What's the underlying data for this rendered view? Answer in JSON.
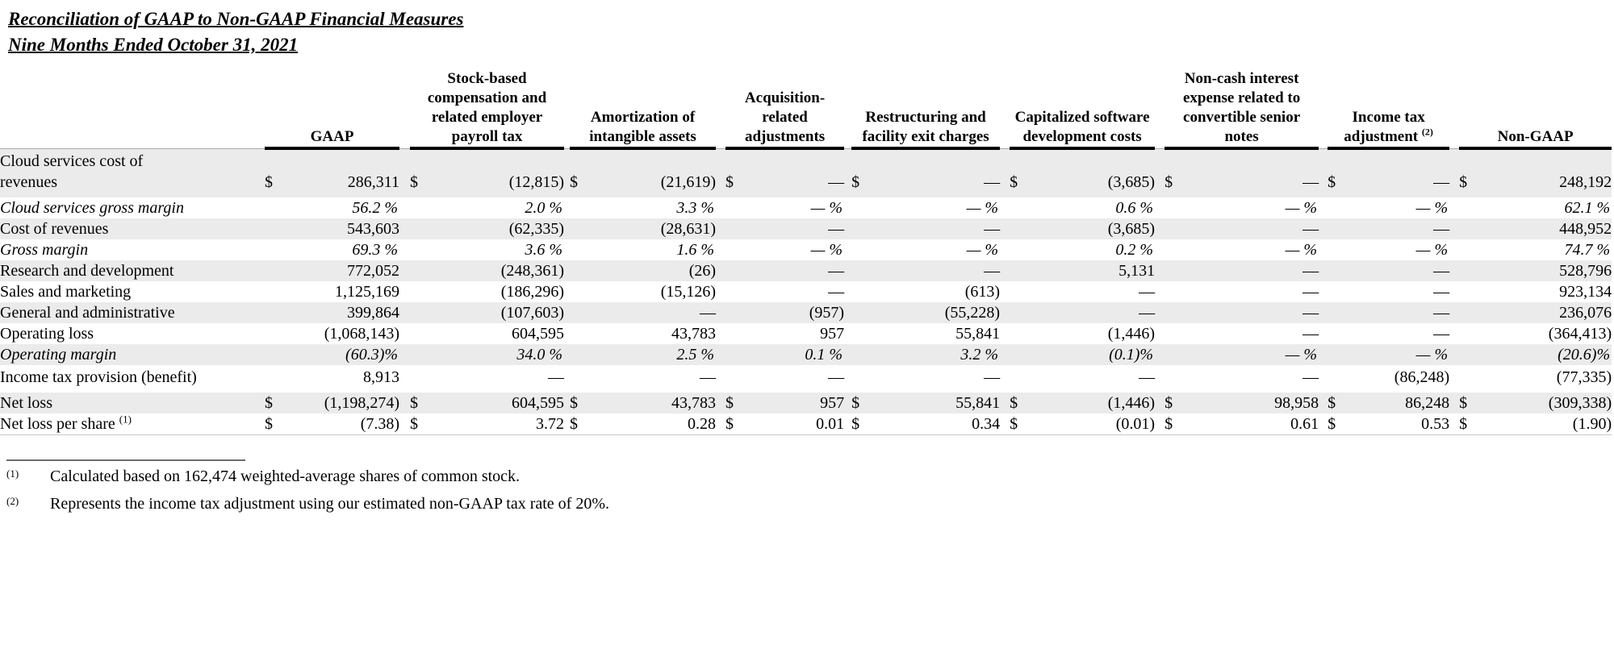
{
  "title": {
    "line1": "Reconciliation of GAAP to Non-GAAP Financial Measures",
    "line2": "Nine Months Ended October 31, 2021"
  },
  "table": {
    "columns": [
      {
        "label": "GAAP"
      },
      {
        "label": "Stock-based compensation and related employer payroll tax"
      },
      {
        "label": "Amortization of intangible assets"
      },
      {
        "label": "Acquisition-related adjustments"
      },
      {
        "label": "Restructuring and facility exit charges"
      },
      {
        "label": "Capitalized software development costs"
      },
      {
        "label": "Non-cash interest expense related to convertible senior notes"
      },
      {
        "label": "Income tax adjustment",
        "sup": "(2)"
      },
      {
        "label": "Non-GAAP"
      }
    ],
    "rows": [
      {
        "label": "Cloud services cost of revenues",
        "wrap": true,
        "currency": true,
        "italic": false,
        "values": [
          "286,311",
          "(12,815)",
          "(21,619)",
          "—",
          "—",
          "(3,685)",
          "—",
          "—",
          "248,192"
        ]
      },
      {
        "label": "Cloud services gross margin",
        "currency": false,
        "italic": true,
        "values": [
          "56.2 %",
          "2.0 %",
          "3.3 %",
          "— %",
          "— %",
          "0.6 %",
          "— %",
          "— %",
          "62.1 %"
        ]
      },
      {
        "label": "Cost of revenues",
        "currency": false,
        "italic": false,
        "values": [
          "543,603",
          "(62,335)",
          "(28,631)",
          "—",
          "—",
          "(3,685)",
          "—",
          "—",
          "448,952"
        ]
      },
      {
        "label": "Gross margin",
        "currency": false,
        "italic": true,
        "values": [
          "69.3 %",
          "3.6 %",
          "1.6 %",
          "— %",
          "— %",
          "0.2 %",
          "— %",
          "— %",
          "74.7 %"
        ]
      },
      {
        "label": "Research and development",
        "currency": false,
        "italic": false,
        "values": [
          "772,052",
          "(248,361)",
          "(26)",
          "—",
          "—",
          "5,131",
          "—",
          "—",
          "528,796"
        ]
      },
      {
        "label": "Sales and marketing",
        "currency": false,
        "italic": false,
        "values": [
          "1,125,169",
          "(186,296)",
          "(15,126)",
          "—",
          "(613)",
          "—",
          "—",
          "—",
          "923,134"
        ]
      },
      {
        "label": "General and administrative",
        "currency": false,
        "italic": false,
        "values": [
          "399,864",
          "(107,603)",
          "—",
          "(957)",
          "(55,228)",
          "—",
          "—",
          "—",
          "236,076"
        ]
      },
      {
        "label": "Operating loss",
        "currency": false,
        "italic": false,
        "values": [
          "(1,068,143)",
          "604,595",
          "43,783",
          "957",
          "55,841",
          "(1,446)",
          "—",
          "—",
          "(364,413)"
        ]
      },
      {
        "label": "Operating margin",
        "currency": false,
        "italic": true,
        "values": [
          "(60.3)%",
          "34.0 %",
          "2.5 %",
          "0.1 %",
          "3.2 %",
          "(0.1)%",
          "— %",
          "— %",
          "(20.6)%"
        ]
      },
      {
        "label": "Income tax provision (benefit)",
        "wrap": true,
        "currency": false,
        "italic": false,
        "values": [
          "8,913",
          "—",
          "—",
          "—",
          "—",
          "—",
          "—",
          "(86,248)",
          "(77,335)"
        ]
      },
      {
        "label": "Net loss",
        "currency": true,
        "italic": false,
        "values": [
          "(1,198,274)",
          "604,595",
          "43,783",
          "957",
          "55,841",
          "(1,446)",
          "98,958",
          "86,248",
          "(309,338)"
        ]
      },
      {
        "label": "Net loss per share",
        "sup": "(1)",
        "currency": true,
        "italic": false,
        "values": [
          "(7.38)",
          "3.72",
          "0.28",
          "0.01",
          "0.34",
          "(0.01)",
          "0.61",
          "0.53",
          "(1.90)"
        ]
      }
    ],
    "currency_symbol": "$"
  },
  "footnotes": [
    {
      "marker": "(1)",
      "text": "Calculated based on 162,474 weighted-average shares of common stock."
    },
    {
      "marker": "(2)",
      "text": "Represents the income tax adjustment using our estimated non-GAAP tax rate of 20%."
    }
  ],
  "colors": {
    "row_shade": "#ebebeb",
    "header_rule": "#000000"
  }
}
